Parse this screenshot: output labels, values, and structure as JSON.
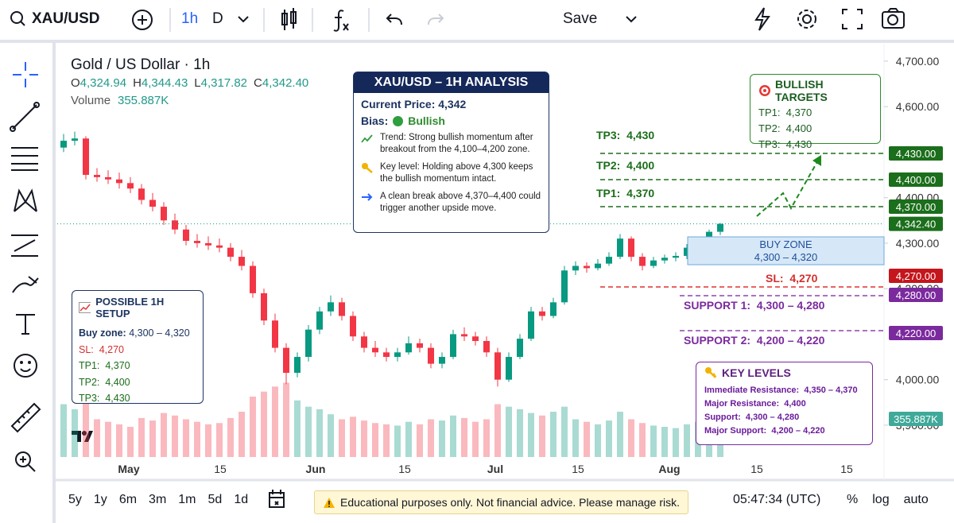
{
  "toolbar": {
    "symbol": "XAU/USD",
    "interval": "1h",
    "interval_alt": "D",
    "save": "Save"
  },
  "legend": {
    "title": "Gold / US Dollar · 1h",
    "ohlc": [
      {
        "label": "O",
        "value": "4,324.94"
      },
      {
        "label": "H",
        "value": "4,344.43"
      },
      {
        "label": "L",
        "value": "4,317.82"
      },
      {
        "label": "C",
        "value": "4,342.40"
      }
    ],
    "volume_label": "Volume",
    "volume_value": "355.887K"
  },
  "chart": {
    "type": "candlestick",
    "up_color": "#089981",
    "down_color": "#f23645",
    "ylim": [
      3830,
      4733
    ],
    "yticks": [
      {
        "value": 4700,
        "label": "4,700.00"
      },
      {
        "value": 4600,
        "label": "4,600.00"
      },
      {
        "value": 4400,
        "label": "4,400.00"
      },
      {
        "value": 4300,
        "label": "4,300.00"
      },
      {
        "value": 4200,
        "label": "4,200.00"
      },
      {
        "value": 4000,
        "label": "4,000.00"
      },
      {
        "value": 3900,
        "label": "3,900.00"
      }
    ],
    "vlim": [
      0,
      600
    ],
    "x_labels": [
      "May",
      "15",
      "Jun",
      "15",
      "Jul",
      "15",
      "Aug",
      "15",
      "15"
    ],
    "candles": [
      [
        4510,
        4540,
        4500,
        4525
      ],
      [
        4525,
        4545,
        4515,
        4530
      ],
      [
        4530,
        4535,
        4440,
        4450
      ],
      [
        4450,
        4465,
        4435,
        4445
      ],
      [
        4445,
        4460,
        4430,
        4440
      ],
      [
        4440,
        4455,
        4420,
        4432
      ],
      [
        4432,
        4445,
        4410,
        4420
      ],
      [
        4420,
        4430,
        4385,
        4395
      ],
      [
        4395,
        4410,
        4370,
        4380
      ],
      [
        4380,
        4390,
        4340,
        4350
      ],
      [
        4350,
        4365,
        4320,
        4330
      ],
      [
        4330,
        4340,
        4295,
        4305
      ],
      [
        4305,
        4320,
        4290,
        4300
      ],
      [
        4300,
        4315,
        4285,
        4295
      ],
      [
        4295,
        4310,
        4280,
        4290
      ],
      [
        4290,
        4300,
        4260,
        4270
      ],
      [
        4270,
        4285,
        4240,
        4250
      ],
      [
        4250,
        4260,
        4180,
        4190
      ],
      [
        4190,
        4200,
        4120,
        4130
      ],
      [
        4130,
        4145,
        4060,
        4070
      ],
      [
        4070,
        4080,
        3990,
        4015
      ],
      [
        4015,
        4060,
        4005,
        4050
      ],
      [
        4050,
        4120,
        4040,
        4110
      ],
      [
        4110,
        4160,
        4100,
        4150
      ],
      [
        4150,
        4185,
        4140,
        4170
      ],
      [
        4170,
        4180,
        4130,
        4140
      ],
      [
        4140,
        4150,
        4085,
        4095
      ],
      [
        4095,
        4105,
        4060,
        4070
      ],
      [
        4070,
        4085,
        4050,
        4060
      ],
      [
        4060,
        4070,
        4040,
        4050
      ],
      [
        4050,
        4070,
        4040,
        4060
      ],
      [
        4060,
        4095,
        4055,
        4080
      ],
      [
        4080,
        4090,
        4060,
        4070
      ],
      [
        4070,
        4080,
        4025,
        4035
      ],
      [
        4035,
        4060,
        4025,
        4050
      ],
      [
        4050,
        4110,
        4045,
        4100
      ],
      [
        4100,
        4115,
        4085,
        4095
      ],
      [
        4095,
        4105,
        4075,
        4085
      ],
      [
        4085,
        4095,
        4050,
        4060
      ],
      [
        4060,
        4070,
        3985,
        4000
      ],
      [
        4000,
        4060,
        3995,
        4050
      ],
      [
        4050,
        4100,
        4045,
        4090
      ],
      [
        4090,
        4160,
        4085,
        4150
      ],
      [
        4150,
        4160,
        4130,
        4140
      ],
      [
        4140,
        4180,
        4135,
        4170
      ],
      [
        4170,
        4250,
        4165,
        4240
      ],
      [
        4240,
        4260,
        4230,
        4250
      ],
      [
        4250,
        4258,
        4235,
        4245
      ],
      [
        4245,
        4265,
        4240,
        4255
      ],
      [
        4255,
        4280,
        4250,
        4270
      ],
      [
        4270,
        4320,
        4265,
        4310
      ],
      [
        4310,
        4315,
        4260,
        4270
      ],
      [
        4270,
        4278,
        4240,
        4250
      ],
      [
        4250,
        4270,
        4245,
        4262
      ],
      [
        4262,
        4275,
        4255,
        4268
      ],
      [
        4268,
        4280,
        4260,
        4272
      ],
      [
        4272,
        4298,
        4265,
        4290
      ],
      [
        4290,
        4312,
        4285,
        4305
      ],
      [
        4305,
        4330,
        4300,
        4324.94
      ],
      [
        4324.94,
        4344.43,
        4317.82,
        4342.4
      ]
    ],
    "volumes": [
      420,
      380,
      520,
      300,
      280,
      260,
      240,
      310,
      290,
      350,
      330,
      300,
      280,
      260,
      270,
      310,
      360,
      480,
      520,
      560,
      590,
      450,
      400,
      380,
      340,
      300,
      320,
      290,
      270,
      260,
      250,
      280,
      260,
      300,
      290,
      330,
      310,
      280,
      300,
      420,
      400,
      380,
      350,
      330,
      360,
      400,
      300,
      280,
      260,
      290,
      360,
      300,
      270,
      250,
      240,
      230,
      260,
      280,
      300,
      355.887
    ],
    "last_price_label": "4,342.40",
    "price_tags": [
      {
        "label": "4,430.00",
        "color": "#1b6e1b"
      },
      {
        "label": "4,400.00",
        "color": "#1b6e1b"
      },
      {
        "label": "4,370.00",
        "color": "#1b6e1b"
      },
      {
        "label": "4,270.00",
        "color": "#c4161c"
      },
      {
        "label": "4,280.00",
        "color": "#7b2a9e"
      },
      {
        "label": "4,220.00",
        "color": "#7b2a9e"
      },
      {
        "label": "355.887K",
        "color": "#3fa99a"
      }
    ]
  },
  "chart_labels": {
    "tp3": "TP3:  4,430",
    "tp2": "TP2:  4,400",
    "tp1": "TP1:  4,370",
    "buy_zone_title": "BUY ZONE",
    "buy_zone_range": "4,300 – 4,320",
    "sl": "SL:  4,270",
    "support1": "SUPPORT 1:  4,300 – 4,280",
    "support2": "SUPPORT 2:  4,200 – 4,220"
  },
  "analysis": {
    "title": "XAU/USD – 1H ANALYSIS",
    "price_label": "Current Price:",
    "price": "4,342",
    "bias_label": "Bias:",
    "bias": "Bullish",
    "points": [
      "Trend: Strong bullish momentum after breakout from the 4,100–4,200 zone.",
      "Key level: Holding above 4,300 keeps the bullish momentum intact.",
      "A clean break above 4,370–4,400 could trigger another upside move."
    ]
  },
  "targets": {
    "title": "BULLISH TARGETS",
    "items": [
      "TP1:  4,370",
      "TP2:  4,400",
      "TP3:  4,430"
    ]
  },
  "setup": {
    "title": "POSSIBLE 1H SETUP",
    "buy_label": "Buy zone:",
    "buy_value": "4,300 – 4,320",
    "sl": "SL:  4,270",
    "items": [
      "TP1:  4,370",
      "TP2:  4,400",
      "TP3:  4,430"
    ]
  },
  "key_levels": {
    "title": "KEY LEVELS",
    "items": [
      "Immediate Resistance:  4,350 – 4,370",
      "Major Resistance:  4,400",
      "Support:  4,300 – 4,280",
      "Major Support:  4,200 – 4,220"
    ]
  },
  "bottom": {
    "timeframes": [
      "5y",
      "1y",
      "6m",
      "3m",
      "1m",
      "5d",
      "1d"
    ],
    "disclaimer": "Educational purposes only. Not financial advice. Please manage risk.",
    "time": "05:47:34 (UTC)",
    "toggles": [
      "%",
      "log",
      "auto"
    ]
  }
}
